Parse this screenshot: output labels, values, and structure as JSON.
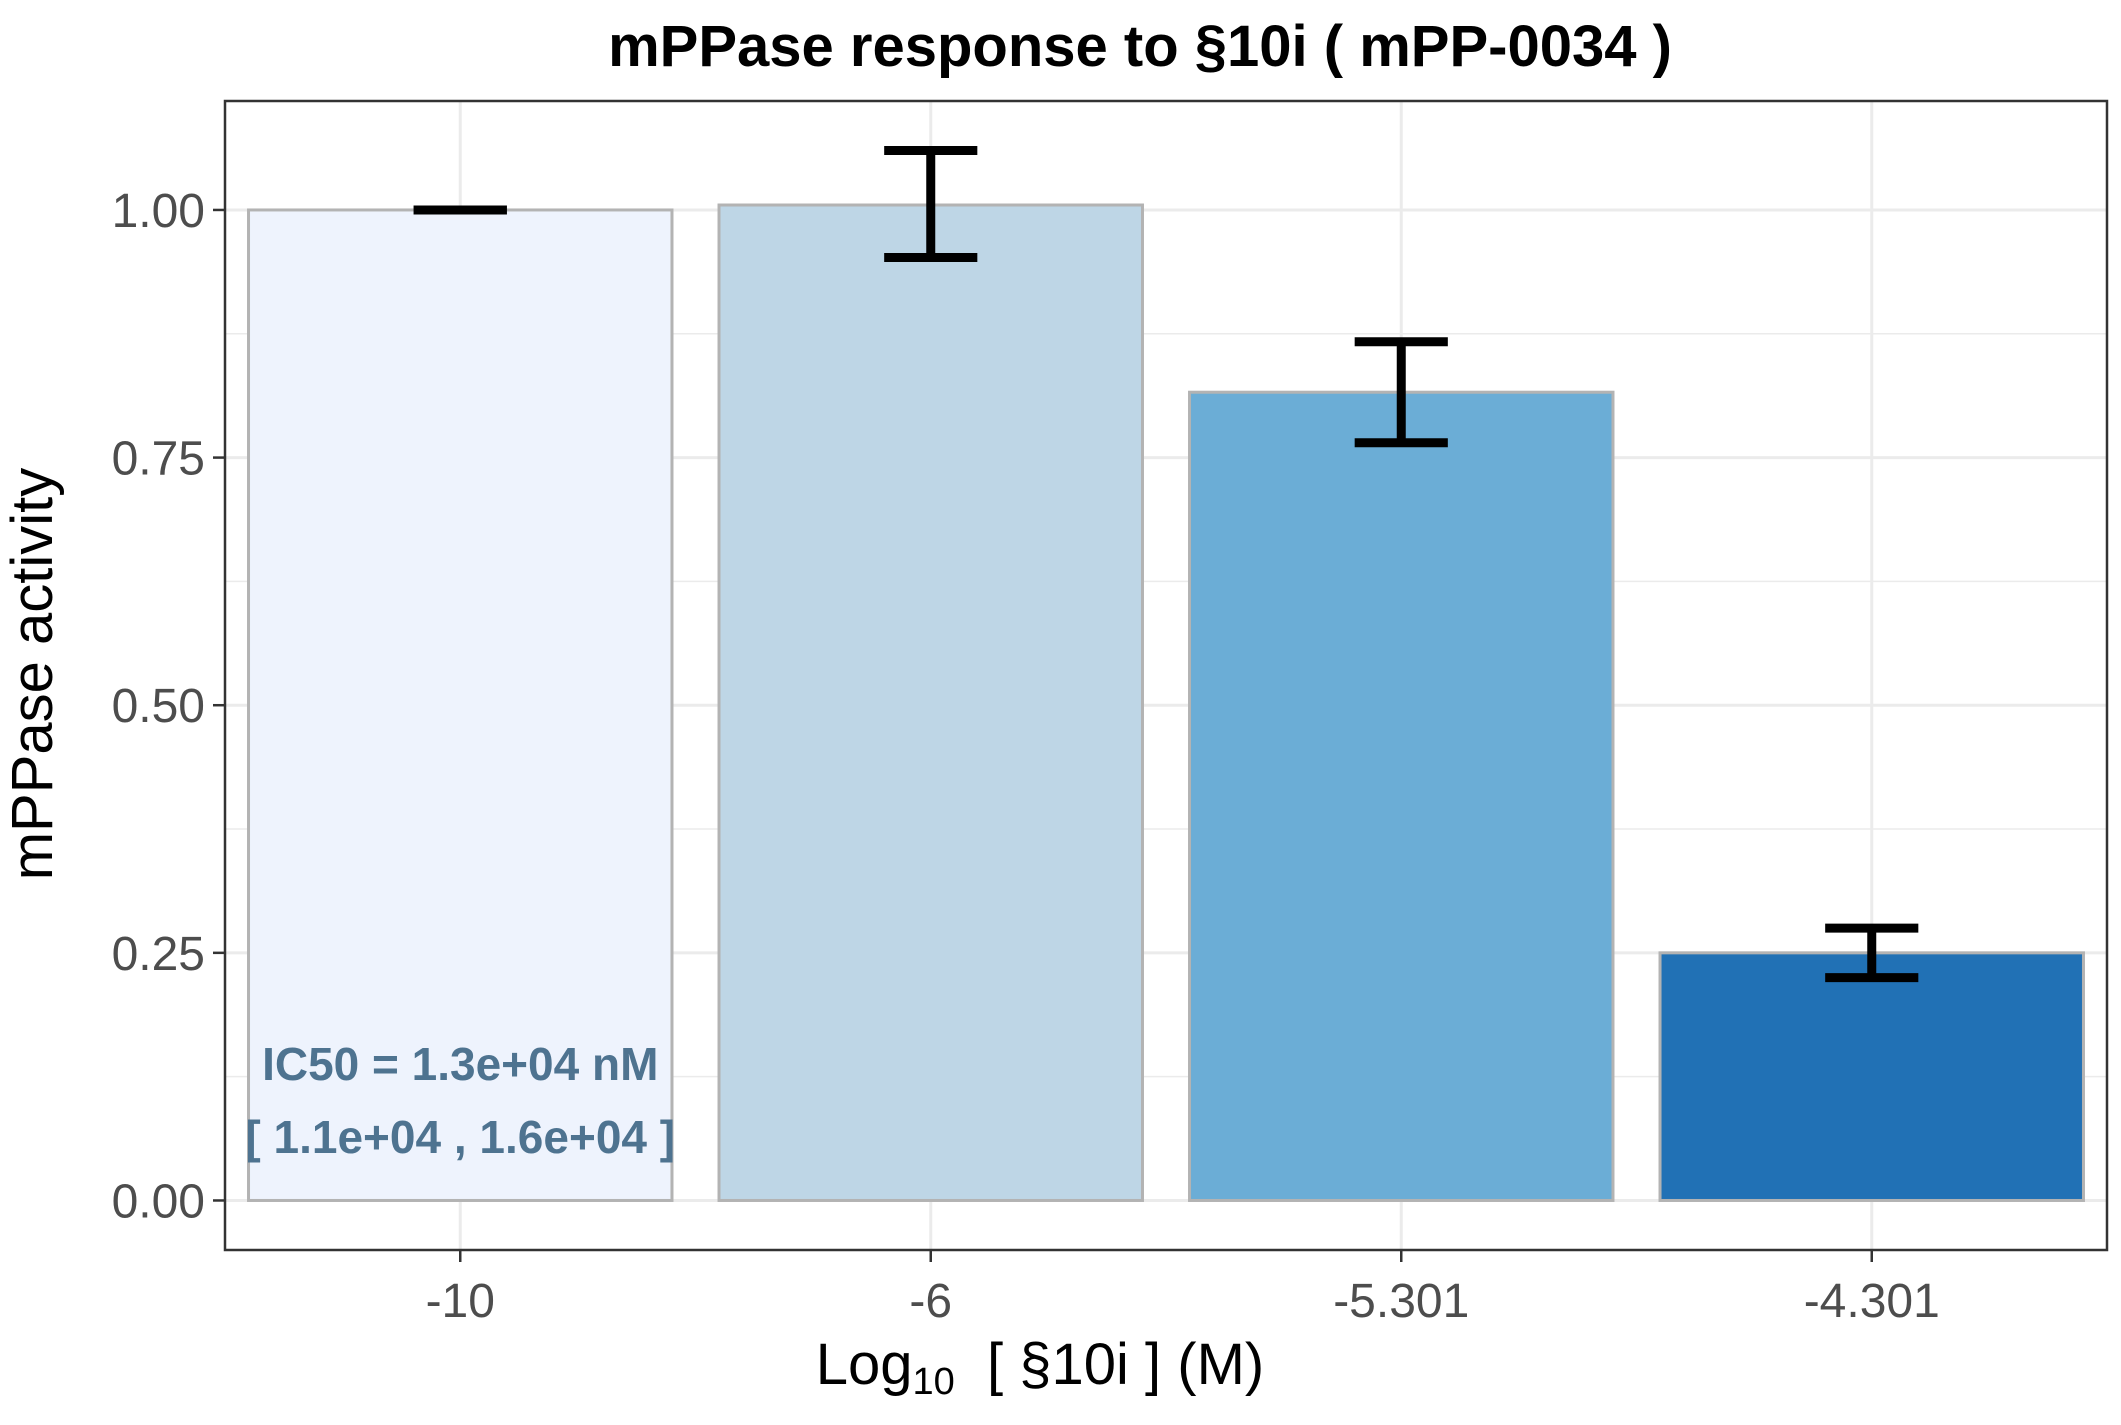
{
  "chart_data": {
    "type": "bar",
    "title": "mPPase response to §10i ( mPP-0034 )",
    "xlabel": {
      "prefix": "Log",
      "subscript": "10",
      "suffix": "  [ §10i ] (M)"
    },
    "ylabel": "mPPase activity",
    "categories": [
      "-10",
      "-6",
      "-5.301",
      "-4.301"
    ],
    "series": [
      {
        "values": [
          1.0,
          1.005,
          0.816,
          0.25
        ],
        "error_low": [
          1.0,
          0.952,
          0.765,
          0.225
        ],
        "error_high": [
          1.0,
          1.06,
          0.867,
          0.275
        ],
        "colors": [
          "#eef3fd",
          "#bed6e6",
          "#6badd6",
          "#2171b5"
        ]
      }
    ],
    "ylim": [
      -0.05,
      1.11
    ],
    "yticks": [
      0.0,
      0.25,
      0.5,
      0.75,
      1.0
    ],
    "ytick_labels": [
      "0.00",
      "0.25",
      "0.50",
      "0.75",
      "1.00"
    ],
    "grid": true,
    "legend": "none",
    "annotations": [
      {
        "text": "IC50 = 1.3e+04 nM",
        "color": "#4e7390"
      },
      {
        "text": "[ 1.1e+04 , 1.6e+04 ]",
        "color": "#4e7390"
      }
    ],
    "colors": {
      "bar_outline": "#b3b3b3",
      "error_bar": "#000000",
      "grid": "#ebebeb",
      "panel_border": "#333333"
    }
  }
}
